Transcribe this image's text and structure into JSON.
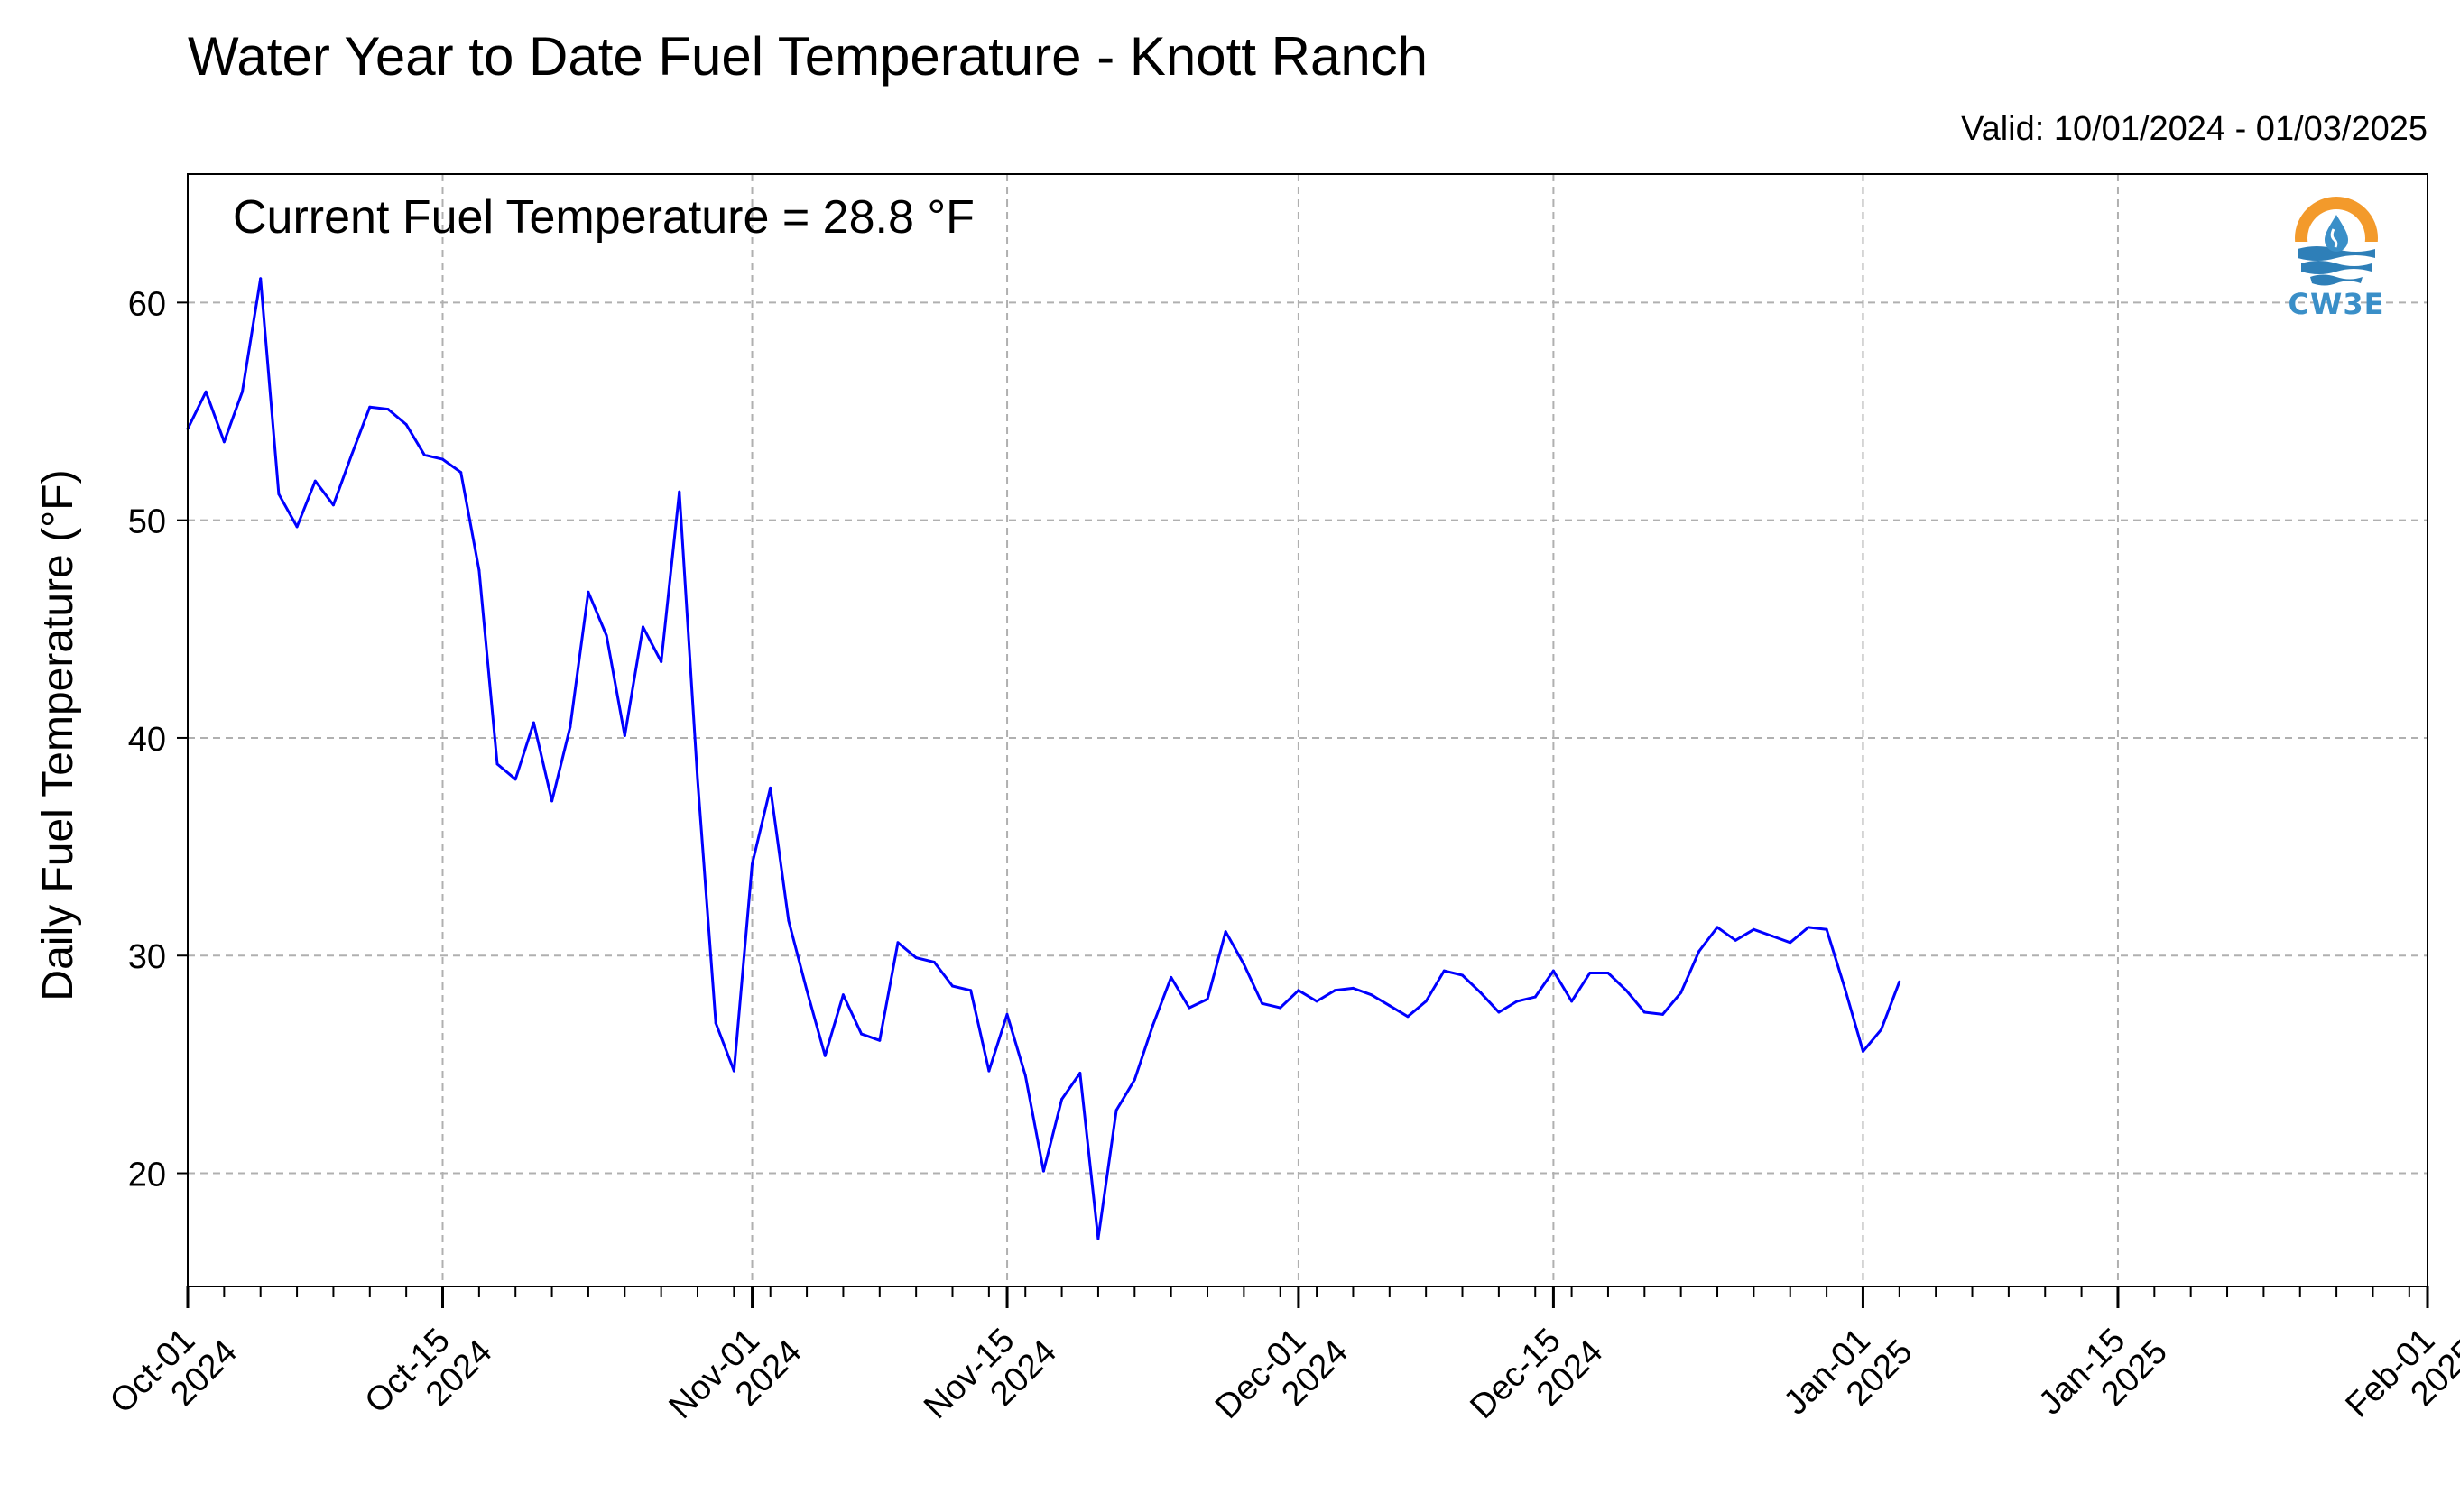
{
  "header": {
    "title": "Water Year to Date Fuel Temperature - Knott Ranch",
    "valid": "Valid: 10/01/2024 - 01/03/2025"
  },
  "annotation": "Current Fuel Temperature = 28.8 °F",
  "logo": {
    "text": "CW3E",
    "icon": "water-drop-sun-icon",
    "colors": {
      "ring": "#f39a2b",
      "drop": "#3a8fc8",
      "waves": "#2e7fb8"
    }
  },
  "chart_data": {
    "type": "line",
    "title": "Water Year to Date Fuel Temperature - Knott Ranch",
    "ylabel": "Daily Fuel Temperature (°F)",
    "xlabel": "",
    "ylim": [
      14.8,
      65.9
    ],
    "y_ticks": [
      20,
      30,
      40,
      50,
      60
    ],
    "xlim": [
      "2024-10-01",
      "2025-02-01"
    ],
    "x_ticks": [
      {
        "date": "2024-10-01",
        "label1": "Oct-01",
        "label2": "2024"
      },
      {
        "date": "2024-10-15",
        "label1": "Oct-15",
        "label2": "2024"
      },
      {
        "date": "2024-11-01",
        "label1": "Nov-01",
        "label2": "2024"
      },
      {
        "date": "2024-11-15",
        "label1": "Nov-15",
        "label2": "2024"
      },
      {
        "date": "2024-12-01",
        "label1": "Dec-01",
        "label2": "2024"
      },
      {
        "date": "2024-12-15",
        "label1": "Dec-15",
        "label2": "2024"
      },
      {
        "date": "2025-01-01",
        "label1": "Jan-01",
        "label2": "2025"
      },
      {
        "date": "2025-01-15",
        "label1": "Jan-15",
        "label2": "2025"
      },
      {
        "date": "2025-02-01",
        "label1": "Feb-01",
        "label2": "2025"
      }
    ],
    "grid": true,
    "color": "#0000ff",
    "series": [
      {
        "start_date": "2024-10-01",
        "values": [
          54.2,
          55.9,
          53.6,
          55.9,
          61.1,
          51.2,
          49.7,
          51.8,
          50.7,
          53.0,
          55.2,
          55.1,
          54.4,
          53.0,
          52.8,
          52.2,
          47.7,
          38.8,
          38.1,
          40.7,
          37.1,
          40.5,
          46.7,
          44.7,
          40.1,
          45.1,
          43.5,
          51.3,
          38.1,
          26.9,
          24.7,
          34.2,
          37.7,
          31.6,
          28.4,
          25.4,
          28.2,
          26.4,
          26.1,
          30.6,
          29.9,
          29.7,
          28.6,
          28.4,
          24.7,
          27.3,
          24.5,
          20.1,
          23.4,
          24.6,
          17.0,
          22.9,
          24.3,
          26.8,
          29.0,
          27.6,
          28.0,
          31.1,
          29.6,
          27.8,
          27.6,
          28.4,
          27.9,
          28.4,
          28.5,
          28.2,
          27.7,
          27.2,
          27.9,
          29.3,
          29.1,
          28.3,
          27.4,
          27.9,
          28.1,
          29.3,
          27.9,
          29.2,
          29.2,
          28.4,
          27.4,
          27.3,
          28.3,
          30.2,
          31.3,
          30.7,
          31.2,
          30.9,
          30.6,
          31.3,
          31.2,
          28.5,
          25.6,
          26.6,
          28.8
        ]
      }
    ]
  }
}
